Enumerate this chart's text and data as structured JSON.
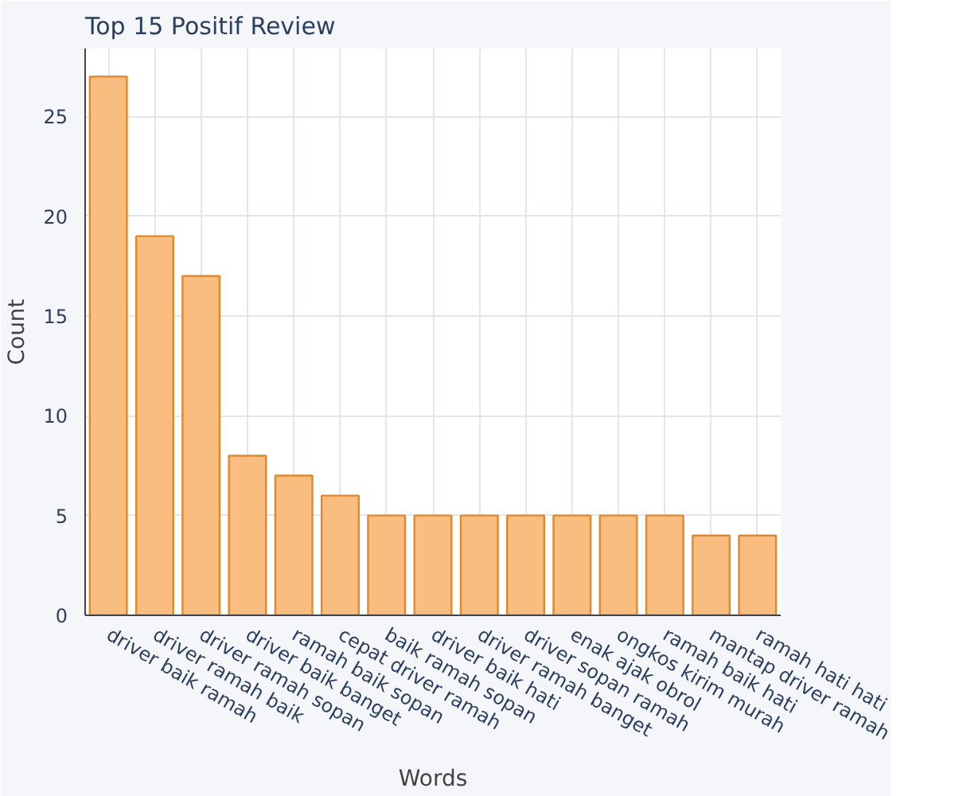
{
  "chart_data": {
    "type": "bar",
    "title": "Top 15 Positif Review",
    "xlabel": "Words",
    "ylabel": "Count",
    "categories": [
      "driver baik ramah",
      "driver ramah baik",
      "driver ramah sopan",
      "driver baik banget",
      "ramah baik sopan",
      "cepat driver ramah",
      "baik ramah sopan",
      "driver baik hati",
      "driver ramah banget",
      "driver sopan ramah",
      "enak ajak obrol",
      "ongkos kirim murah",
      "ramah baik hati",
      "mantap driver ramah",
      "ramah hati hati"
    ],
    "values": [
      27,
      19,
      17,
      8,
      7,
      6,
      5,
      5,
      5,
      5,
      5,
      5,
      5,
      4,
      4
    ],
    "color": "#f8bd7f",
    "ylim": [
      0,
      28.4
    ],
    "yticks": [
      0,
      5,
      10,
      15,
      20,
      25
    ],
    "grid": true
  }
}
